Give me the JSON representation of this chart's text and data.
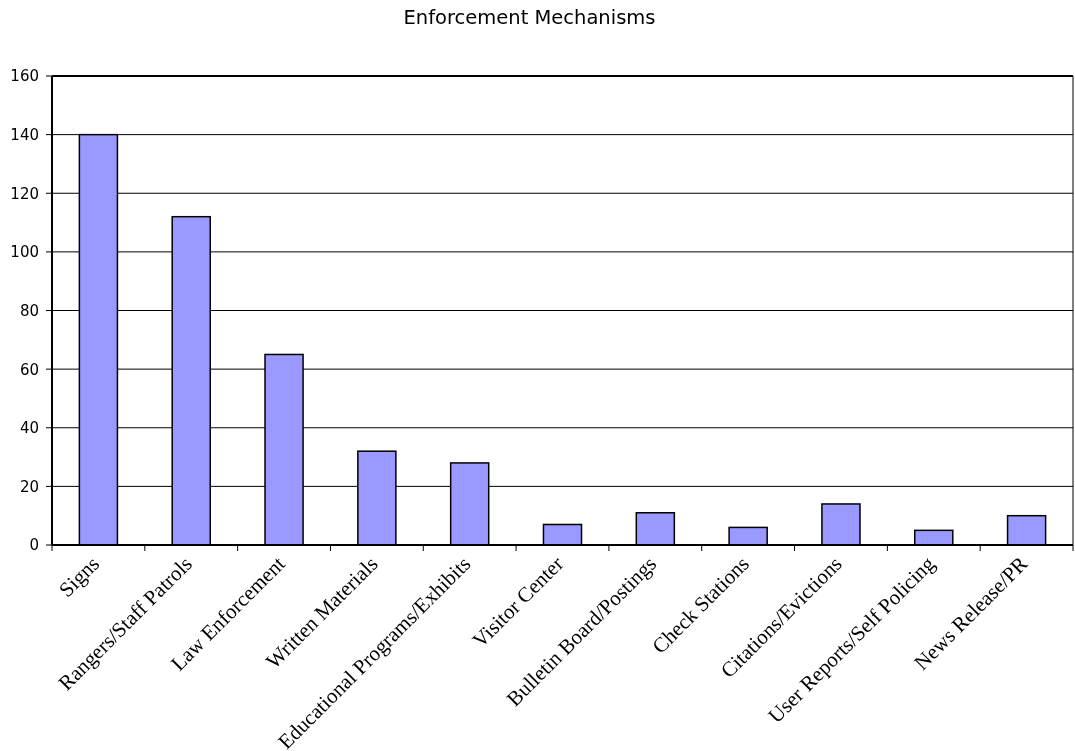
{
  "chart_data": {
    "type": "bar",
    "title": "Enforcement Mechanisms",
    "categories": [
      "Signs",
      "Rangers/Staff Patrols",
      "Law Enforcement",
      "Written Materials",
      "Educational Programs/Exhibits",
      "Visitor Center",
      "Bulletin Board/Postings",
      "Check Stations",
      "Citations/Evictions",
      "User Reports/Self Policing",
      "News Release/PR"
    ],
    "values": [
      140,
      112,
      65,
      32,
      28,
      7,
      11,
      6,
      14,
      5,
      10
    ],
    "color": "#9999ff",
    "ylim": [
      0,
      160
    ],
    "yticks": [
      0,
      20,
      40,
      60,
      80,
      100,
      120,
      140,
      160
    ],
    "grid": "y"
  }
}
